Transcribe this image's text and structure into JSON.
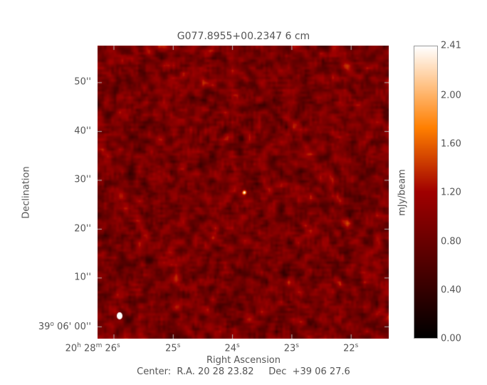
{
  "chart_data": {
    "type": "heatmap",
    "title": "G077.8955+00.2347 6 cm",
    "xlabel": "Right Ascension",
    "ylabel": "Declination",
    "colorbar_label": "mJy/beam",
    "colorbar_range": [
      0.0,
      2.41
    ],
    "colorbar_ticks": [
      "2.41",
      "2.00",
      "1.60",
      "1.20",
      "0.80",
      "0.40",
      "0.00"
    ],
    "colorbar_tick_values": [
      2.41,
      2.0,
      1.6,
      1.2,
      0.8,
      0.4,
      0.0
    ],
    "colormap": [
      [
        "0",
        "#000000"
      ],
      [
        "0.5",
        "#a00000"
      ],
      [
        "0.72",
        "#ff7f00"
      ],
      [
        "1",
        "#ffffff"
      ]
    ],
    "x_ticks": [
      {
        "seconds": 26,
        "h": "20",
        "m": "28",
        "s": "26"
      },
      {
        "seconds": 25,
        "s": "25"
      },
      {
        "seconds": 24,
        "s": "24"
      },
      {
        "seconds": 23,
        "s": "23"
      },
      {
        "seconds": 22,
        "s": "22"
      }
    ],
    "x_range_seconds": [
      26.27,
      21.36
    ],
    "y_ticks": [
      {
        "arcsec": 50,
        "label": "50''"
      },
      {
        "arcsec": 40,
        "label": "40''"
      },
      {
        "arcsec": 30,
        "label": "30''"
      },
      {
        "arcsec": 20,
        "label": "20''"
      },
      {
        "arcsec": 10,
        "label": "10''"
      },
      {
        "arcsec": 0,
        "deg": "39",
        "label": " 06' 00''"
      }
    ],
    "y_range_arcsec": [
      -2.5,
      57.5
    ],
    "sources": [
      {
        "ra_seconds": 23.8,
        "dec_arcsec": 27.5,
        "peak": 2.41
      }
    ],
    "background_level": 0.9,
    "beam_color": "#ffffff",
    "center_text": "Center:  R.A. 20 28 23.82     Dec  +39 06 27.6"
  }
}
